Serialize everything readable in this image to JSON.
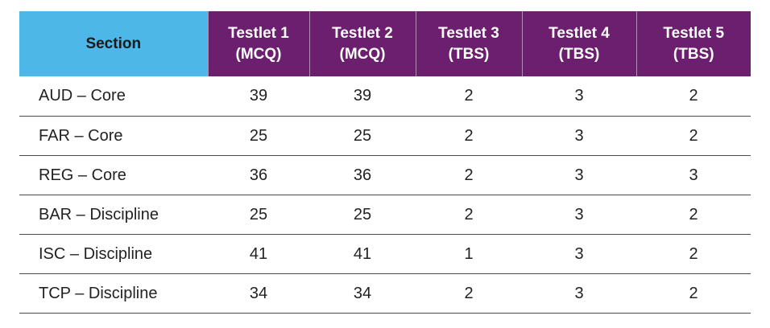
{
  "table": {
    "header": {
      "section": "Section",
      "testlets": [
        {
          "line1": "Testlet 1",
          "line2": "(MCQ)"
        },
        {
          "line1": "Testlet 2",
          "line2": "(MCQ)"
        },
        {
          "line1": "Testlet 3",
          "line2": "(TBS)"
        },
        {
          "line1": "Testlet 4",
          "line2": "(TBS)"
        },
        {
          "line1": "Testlet 5",
          "line2": "(TBS)"
        }
      ]
    },
    "rows": [
      {
        "section": "AUD – Core",
        "values": [
          "39",
          "39",
          "2",
          "3",
          "2"
        ]
      },
      {
        "section": "FAR – Core",
        "values": [
          "25",
          "25",
          "2",
          "3",
          "2"
        ]
      },
      {
        "section": "REG – Core",
        "values": [
          "36",
          "36",
          "2",
          "3",
          "3"
        ]
      },
      {
        "section": "BAR – Discipline",
        "values": [
          "25",
          "25",
          "2",
          "3",
          "2"
        ]
      },
      {
        "section": "ISC – Discipline",
        "values": [
          "41",
          "41",
          "1",
          "3",
          "2"
        ]
      },
      {
        "section": "TCP – Discipline",
        "values": [
          "34",
          "34",
          "2",
          "3",
          "2"
        ]
      }
    ],
    "colors": {
      "section_header_bg": "#4db8e8",
      "testlet_header_bg": "#6b1f6e",
      "testlet_header_text": "#ffffff"
    }
  }
}
